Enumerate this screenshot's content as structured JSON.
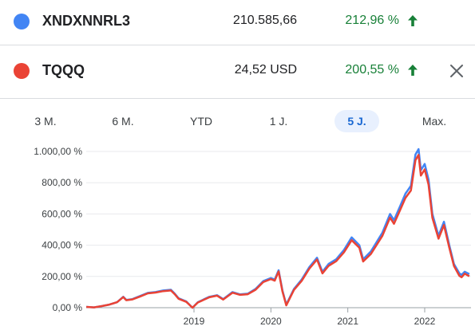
{
  "securities": [
    {
      "ticker": "XNDXNNRL3",
      "price": "210.585,66",
      "change": "212,96 %",
      "color": "#4285f4",
      "trend_icon": "arrow-up-icon"
    },
    {
      "ticker": "TQQQ",
      "price": "24,52 USD",
      "change": "200,55 %",
      "color": "#ea4335",
      "trend_icon": "arrow-up-icon"
    }
  ],
  "close_icon": "close-icon",
  "change_color": "#188038",
  "range_tabs": [
    "3 M.",
    "6 M.",
    "YTD",
    "1 J.",
    "5 J.",
    "Max."
  ],
  "active_tab": "5 J.",
  "chart_data": {
    "type": "line",
    "title": "",
    "xlabel": "",
    "ylabel": "",
    "ylim": [
      0,
      1000
    ],
    "y_ticks": [
      "0,00 %",
      "200,00 %",
      "400,00 %",
      "600,00 %",
      "800,00 %",
      "1.000,00 %"
    ],
    "y_tick_values": [
      0,
      200,
      400,
      600,
      800,
      1000
    ],
    "x_ticks": [
      "2019",
      "2020",
      "2021",
      "2022"
    ],
    "x_tick_positions": [
      2019.0,
      2020.0,
      2021.0,
      2022.0
    ],
    "xlim": [
      2017.55,
      2022.6
    ],
    "grid": "horizontal",
    "series": [
      {
        "name": "XNDXNNRL3",
        "color": "#4285f4",
        "points": [
          [
            2017.6,
            5
          ],
          [
            2017.7,
            2
          ],
          [
            2017.8,
            10
          ],
          [
            2017.9,
            20
          ],
          [
            2018.0,
            35
          ],
          [
            2018.08,
            70
          ],
          [
            2018.12,
            50
          ],
          [
            2018.2,
            55
          ],
          [
            2018.3,
            75
          ],
          [
            2018.4,
            95
          ],
          [
            2018.5,
            100
          ],
          [
            2018.6,
            110
          ],
          [
            2018.7,
            115
          ],
          [
            2018.75,
            90
          ],
          [
            2018.8,
            60
          ],
          [
            2018.9,
            40
          ],
          [
            2018.98,
            0
          ],
          [
            2019.05,
            35
          ],
          [
            2019.2,
            70
          ],
          [
            2019.3,
            80
          ],
          [
            2019.38,
            55
          ],
          [
            2019.5,
            100
          ],
          [
            2019.6,
            85
          ],
          [
            2019.7,
            90
          ],
          [
            2019.8,
            120
          ],
          [
            2019.9,
            170
          ],
          [
            2020.0,
            190
          ],
          [
            2020.05,
            180
          ],
          [
            2020.1,
            240
          ],
          [
            2020.15,
            110
          ],
          [
            2020.2,
            20
          ],
          [
            2020.3,
            120
          ],
          [
            2020.4,
            180
          ],
          [
            2020.5,
            260
          ],
          [
            2020.6,
            320
          ],
          [
            2020.67,
            230
          ],
          [
            2020.75,
            280
          ],
          [
            2020.85,
            310
          ],
          [
            2020.95,
            370
          ],
          [
            2021.05,
            450
          ],
          [
            2021.15,
            400
          ],
          [
            2021.2,
            310
          ],
          [
            2021.3,
            360
          ],
          [
            2021.45,
            480
          ],
          [
            2021.55,
            600
          ],
          [
            2021.6,
            560
          ],
          [
            2021.68,
            650
          ],
          [
            2021.75,
            730
          ],
          [
            2021.82,
            780
          ],
          [
            2021.88,
            980
          ],
          [
            2021.92,
            1015
          ],
          [
            2021.95,
            880
          ],
          [
            2022.0,
            920
          ],
          [
            2022.05,
            820
          ],
          [
            2022.1,
            600
          ],
          [
            2022.18,
            460
          ],
          [
            2022.25,
            550
          ],
          [
            2022.32,
            400
          ],
          [
            2022.38,
            280
          ],
          [
            2022.45,
            220
          ],
          [
            2022.48,
            210
          ],
          [
            2022.52,
            230
          ],
          [
            2022.58,
            215
          ]
        ]
      },
      {
        "name": "TQQQ",
        "color": "#ea4335",
        "points": [
          [
            2017.6,
            5
          ],
          [
            2017.7,
            2
          ],
          [
            2017.8,
            10
          ],
          [
            2017.9,
            20
          ],
          [
            2018.0,
            35
          ],
          [
            2018.08,
            68
          ],
          [
            2018.12,
            48
          ],
          [
            2018.2,
            53
          ],
          [
            2018.3,
            72
          ],
          [
            2018.4,
            92
          ],
          [
            2018.5,
            97
          ],
          [
            2018.6,
            106
          ],
          [
            2018.7,
            110
          ],
          [
            2018.75,
            86
          ],
          [
            2018.8,
            57
          ],
          [
            2018.9,
            37
          ],
          [
            2018.98,
            0
          ],
          [
            2019.05,
            33
          ],
          [
            2019.2,
            67
          ],
          [
            2019.3,
            77
          ],
          [
            2019.38,
            52
          ],
          [
            2019.5,
            96
          ],
          [
            2019.6,
            82
          ],
          [
            2019.7,
            86
          ],
          [
            2019.8,
            115
          ],
          [
            2019.9,
            164
          ],
          [
            2020.0,
            183
          ],
          [
            2020.05,
            173
          ],
          [
            2020.1,
            232
          ],
          [
            2020.15,
            104
          ],
          [
            2020.2,
            15
          ],
          [
            2020.3,
            114
          ],
          [
            2020.4,
            172
          ],
          [
            2020.5,
            250
          ],
          [
            2020.6,
            308
          ],
          [
            2020.67,
            220
          ],
          [
            2020.75,
            268
          ],
          [
            2020.85,
            298
          ],
          [
            2020.95,
            355
          ],
          [
            2021.05,
            432
          ],
          [
            2021.15,
            384
          ],
          [
            2021.2,
            296
          ],
          [
            2021.3,
            344
          ],
          [
            2021.45,
            460
          ],
          [
            2021.55,
            577
          ],
          [
            2021.6,
            537
          ],
          [
            2021.68,
            625
          ],
          [
            2021.75,
            703
          ],
          [
            2021.82,
            750
          ],
          [
            2021.88,
            944
          ],
          [
            2021.92,
            978
          ],
          [
            2021.95,
            846
          ],
          [
            2022.0,
            885
          ],
          [
            2022.05,
            788
          ],
          [
            2022.1,
            576
          ],
          [
            2022.18,
            442
          ],
          [
            2022.25,
            529
          ],
          [
            2022.32,
            384
          ],
          [
            2022.38,
            268
          ],
          [
            2022.45,
            204
          ],
          [
            2022.48,
            195
          ],
          [
            2022.52,
            218
          ],
          [
            2022.58,
            201
          ]
        ]
      }
    ]
  }
}
